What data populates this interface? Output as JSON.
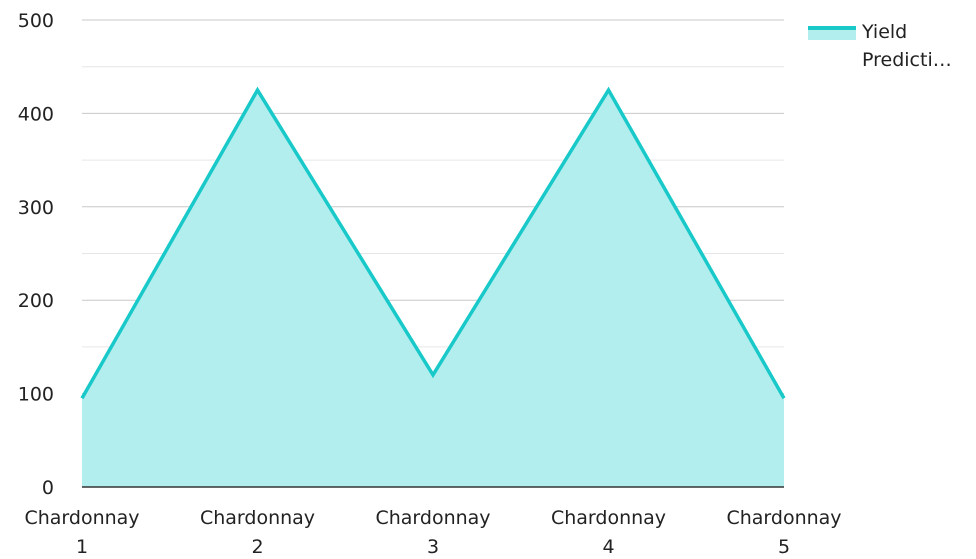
{
  "colors": {
    "series_line": "#19C9C9",
    "series_fill": "#B2EEEE",
    "grid_major": "#c8c8c8",
    "grid_minor": "#e6e6e6",
    "axis": "#333333"
  },
  "legend": {
    "label": "Yield Predicti…",
    "placement": "top-right"
  },
  "chart_data": {
    "type": "area",
    "categories": [
      "Chardonnay 1",
      "Chardonnay 2",
      "Chardonnay 3",
      "Chardonnay 4",
      "Chardonnay 5"
    ],
    "category_lines": [
      [
        "Chardonnay",
        "1"
      ],
      [
        "Chardonnay",
        "2"
      ],
      [
        "Chardonnay",
        "3"
      ],
      [
        "Chardonnay",
        "4"
      ],
      [
        "Chardonnay",
        "5"
      ]
    ],
    "series": [
      {
        "name": "Yield Predicti…",
        "values": [
          95,
          425,
          120,
          425,
          95
        ]
      }
    ],
    "y_ticks": [
      "0",
      "100",
      "200",
      "300",
      "400",
      "500"
    ],
    "ylim": [
      0,
      500
    ],
    "grid": true,
    "legend": "top-right"
  }
}
